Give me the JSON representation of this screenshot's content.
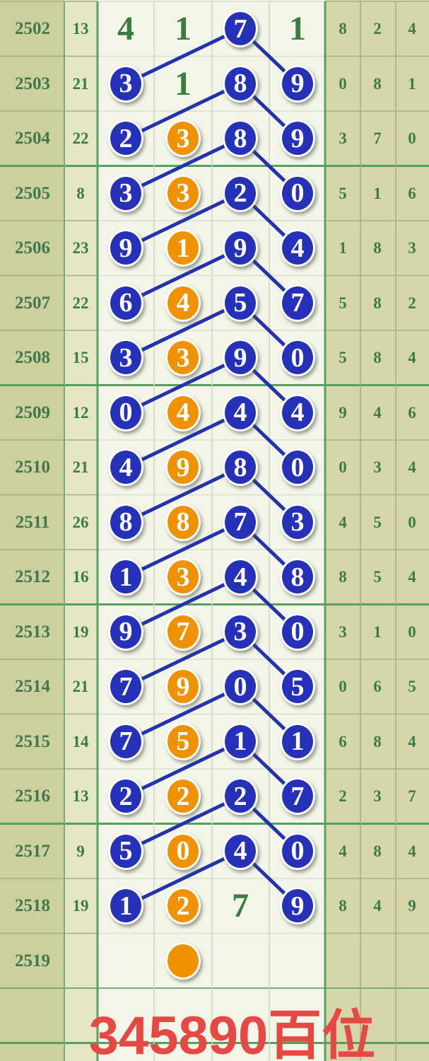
{
  "title": {
    "text": "345890百位",
    "color": "#e64843"
  },
  "chart_data": {
    "type": "table",
    "title": "345890百位",
    "description_visible_structure": "lottery trend grid: period column, sum column, 4 trend columns with circled digits connected by lines, 3 result digit columns",
    "rows": [
      {
        "period": "2502",
        "sum": "13",
        "trend": [
          {
            "v": "4",
            "style": "plain"
          },
          {
            "v": "1",
            "style": "plain"
          },
          {
            "v": "7",
            "style": "blue"
          },
          {
            "v": "1",
            "style": "plain"
          }
        ],
        "result": [
          "8",
          "2",
          "4"
        ]
      },
      {
        "period": "2503",
        "sum": "21",
        "trend": [
          {
            "v": "3",
            "style": "blue"
          },
          {
            "v": "1",
            "style": "plain"
          },
          {
            "v": "8",
            "style": "blue"
          },
          {
            "v": "9",
            "style": "blue"
          }
        ],
        "result": [
          "0",
          "8",
          "1"
        ]
      },
      {
        "period": "2504",
        "sum": "22",
        "trend": [
          {
            "v": "2",
            "style": "blue"
          },
          {
            "v": "3",
            "style": "orange"
          },
          {
            "v": "8",
            "style": "blue"
          },
          {
            "v": "9",
            "style": "blue"
          }
        ],
        "result": [
          "3",
          "7",
          "0"
        ]
      },
      {
        "period": "2505",
        "sum": "8",
        "trend": [
          {
            "v": "3",
            "style": "blue"
          },
          {
            "v": "3",
            "style": "orange"
          },
          {
            "v": "2",
            "style": "blue"
          },
          {
            "v": "0",
            "style": "blue"
          }
        ],
        "result": [
          "5",
          "1",
          "6"
        ]
      },
      {
        "period": "2506",
        "sum": "23",
        "trend": [
          {
            "v": "9",
            "style": "blue"
          },
          {
            "v": "1",
            "style": "orange"
          },
          {
            "v": "9",
            "style": "blue"
          },
          {
            "v": "4",
            "style": "blue"
          }
        ],
        "result": [
          "1",
          "8",
          "3"
        ]
      },
      {
        "period": "2507",
        "sum": "22",
        "trend": [
          {
            "v": "6",
            "style": "blue"
          },
          {
            "v": "4",
            "style": "orange"
          },
          {
            "v": "5",
            "style": "blue"
          },
          {
            "v": "7",
            "style": "blue"
          }
        ],
        "result": [
          "5",
          "8",
          "2"
        ]
      },
      {
        "period": "2508",
        "sum": "15",
        "trend": [
          {
            "v": "3",
            "style": "blue"
          },
          {
            "v": "3",
            "style": "orange"
          },
          {
            "v": "9",
            "style": "blue"
          },
          {
            "v": "0",
            "style": "blue"
          }
        ],
        "result": [
          "5",
          "8",
          "4"
        ]
      },
      {
        "period": "2509",
        "sum": "12",
        "trend": [
          {
            "v": "0",
            "style": "blue"
          },
          {
            "v": "4",
            "style": "orange"
          },
          {
            "v": "4",
            "style": "blue"
          },
          {
            "v": "4",
            "style": "blue"
          }
        ],
        "result": [
          "9",
          "4",
          "6"
        ]
      },
      {
        "period": "2510",
        "sum": "21",
        "trend": [
          {
            "v": "4",
            "style": "blue"
          },
          {
            "v": "9",
            "style": "orange"
          },
          {
            "v": "8",
            "style": "blue"
          },
          {
            "v": "0",
            "style": "blue"
          }
        ],
        "result": [
          "0",
          "3",
          "4"
        ]
      },
      {
        "period": "2511",
        "sum": "26",
        "trend": [
          {
            "v": "8",
            "style": "blue"
          },
          {
            "v": "8",
            "style": "orange"
          },
          {
            "v": "7",
            "style": "blue"
          },
          {
            "v": "3",
            "style": "blue"
          }
        ],
        "result": [
          "4",
          "5",
          "0"
        ]
      },
      {
        "period": "2512",
        "sum": "16",
        "trend": [
          {
            "v": "1",
            "style": "blue"
          },
          {
            "v": "3",
            "style": "orange"
          },
          {
            "v": "4",
            "style": "blue"
          },
          {
            "v": "8",
            "style": "blue"
          }
        ],
        "result": [
          "8",
          "5",
          "4"
        ]
      },
      {
        "period": "2513",
        "sum": "19",
        "trend": [
          {
            "v": "9",
            "style": "blue"
          },
          {
            "v": "7",
            "style": "orange"
          },
          {
            "v": "3",
            "style": "blue"
          },
          {
            "v": "0",
            "style": "blue"
          }
        ],
        "result": [
          "3",
          "1",
          "0"
        ]
      },
      {
        "period": "2514",
        "sum": "21",
        "trend": [
          {
            "v": "7",
            "style": "blue"
          },
          {
            "v": "9",
            "style": "orange"
          },
          {
            "v": "0",
            "style": "blue"
          },
          {
            "v": "5",
            "style": "blue"
          }
        ],
        "result": [
          "0",
          "6",
          "5"
        ]
      },
      {
        "period": "2515",
        "sum": "14",
        "trend": [
          {
            "v": "7",
            "style": "blue"
          },
          {
            "v": "5",
            "style": "orange"
          },
          {
            "v": "1",
            "style": "blue"
          },
          {
            "v": "1",
            "style": "blue"
          }
        ],
        "result": [
          "6",
          "8",
          "4"
        ]
      },
      {
        "period": "2516",
        "sum": "13",
        "trend": [
          {
            "v": "2",
            "style": "blue"
          },
          {
            "v": "2",
            "style": "orange"
          },
          {
            "v": "2",
            "style": "blue"
          },
          {
            "v": "7",
            "style": "blue"
          }
        ],
        "result": [
          "2",
          "3",
          "7"
        ]
      },
      {
        "period": "2517",
        "sum": "9",
        "trend": [
          {
            "v": "5",
            "style": "blue"
          },
          {
            "v": "0",
            "style": "orange"
          },
          {
            "v": "4",
            "style": "blue"
          },
          {
            "v": "0",
            "style": "blue"
          }
        ],
        "result": [
          "4",
          "8",
          "4"
        ]
      },
      {
        "period": "2518",
        "sum": "19",
        "trend": [
          {
            "v": "1",
            "style": "blue"
          },
          {
            "v": "2",
            "style": "orange"
          },
          {
            "v": "7",
            "style": "plain"
          },
          {
            "v": "9",
            "style": "blue"
          }
        ],
        "result": [
          "8",
          "4",
          "9"
        ]
      },
      {
        "period": "2519",
        "sum": "",
        "trend": [
          {
            "v": "",
            "style": "empty"
          },
          {
            "v": "",
            "style": "orange"
          },
          {
            "v": "",
            "style": "empty"
          },
          {
            "v": "",
            "style": "empty"
          }
        ],
        "result": [
          "",
          "",
          ""
        ]
      }
    ],
    "lines": [
      [
        "2502",
        3,
        "2503",
        1
      ],
      [
        "2502",
        3,
        "2503",
        4
      ],
      [
        "2503",
        3,
        "2504",
        1
      ],
      [
        "2503",
        3,
        "2504",
        4
      ],
      [
        "2504",
        3,
        "2505",
        1
      ],
      [
        "2504",
        3,
        "2505",
        4
      ],
      [
        "2505",
        3,
        "2506",
        1
      ],
      [
        "2505",
        3,
        "2506",
        4
      ],
      [
        "2506",
        3,
        "2507",
        1
      ],
      [
        "2506",
        3,
        "2507",
        4
      ],
      [
        "2507",
        3,
        "2508",
        1
      ],
      [
        "2507",
        3,
        "2508",
        4
      ],
      [
        "2508",
        1,
        "2507",
        3,
        0.52
      ],
      [
        "2508",
        3,
        "2509",
        1
      ],
      [
        "2508",
        3,
        "2509",
        4
      ],
      [
        "2509",
        3,
        "2510",
        1
      ],
      [
        "2509",
        3,
        "2510",
        4
      ],
      [
        "2510",
        3,
        "2511",
        1
      ],
      [
        "2510",
        3,
        "2511",
        4
      ],
      [
        "2511",
        3,
        "2512",
        1
      ],
      [
        "2511",
        3,
        "2512",
        4
      ],
      [
        "2512",
        3,
        "2513",
        1
      ],
      [
        "2512",
        3,
        "2513",
        4
      ],
      [
        "2513",
        3,
        "2514",
        1
      ],
      [
        "2513",
        3,
        "2514",
        4
      ],
      [
        "2514",
        3,
        "2515",
        1
      ],
      [
        "2514",
        3,
        "2515",
        4
      ],
      [
        "2515",
        3,
        "2516",
        1
      ],
      [
        "2515",
        3,
        "2516",
        4
      ],
      [
        "2516",
        3,
        "2517",
        1
      ],
      [
        "2516",
        3,
        "2517",
        4
      ],
      [
        "2517",
        3,
        "2518",
        1
      ],
      [
        "2517",
        3,
        "2518",
        4
      ]
    ],
    "colors": {
      "blue_circle": "#2531b8",
      "orange_circle": "#f09200",
      "trend_line": "#2433ad",
      "green_text": "#3c7b44",
      "grid_green": "#55a05f",
      "olive_background": "#cccf9e",
      "sum_column_background": "#e4e6c4",
      "result_background": "#d5d7ab",
      "chart_background": "#f2f5e8",
      "title_red": "#e64843"
    }
  }
}
